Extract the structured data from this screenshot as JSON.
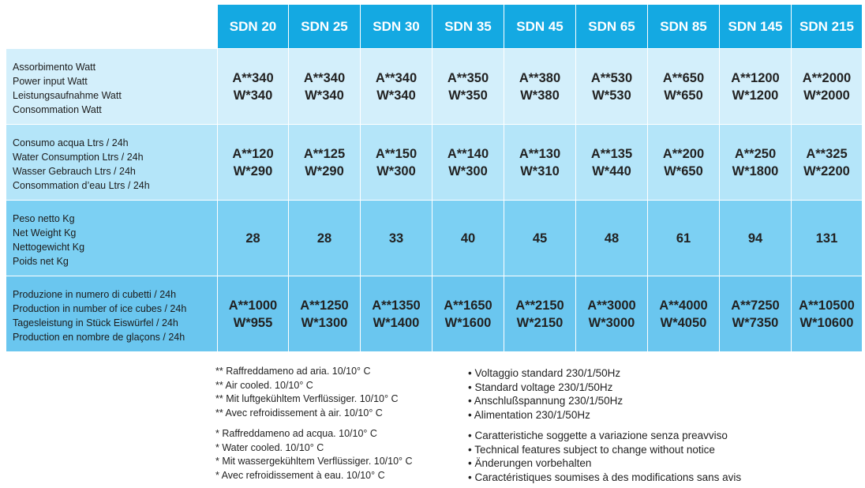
{
  "columns": [
    "SDN 20",
    "SDN 25",
    "SDN 30",
    "SDN 35",
    "SDN 45",
    "SDN 65",
    "SDN 85",
    "SDN 145",
    "SDN 215"
  ],
  "rows": [
    {
      "labels": [
        "Assorbimento Watt",
        "Power input Watt",
        "Leistungsaufnahme Watt",
        "Consommation Watt"
      ],
      "values": [
        [
          "A**340",
          "W*340"
        ],
        [
          "A**340",
          "W*340"
        ],
        [
          "A**340",
          "W*340"
        ],
        [
          "A**350",
          "W*350"
        ],
        [
          "A**380",
          "W*380"
        ],
        [
          "A**530",
          "W*530"
        ],
        [
          "A**650",
          "W*650"
        ],
        [
          "A**1200",
          "W*1200"
        ],
        [
          "A**2000",
          "W*2000"
        ]
      ]
    },
    {
      "labels": [
        "Consumo acqua Ltrs / 24h",
        "Water Consumption Ltrs / 24h",
        "Wasser Gebrauch Ltrs / 24h",
        "Consommation d’eau Ltrs / 24h"
      ],
      "values": [
        [
          "A**120",
          "W*290"
        ],
        [
          "A**125",
          "W*290"
        ],
        [
          "A**150",
          "W*300"
        ],
        [
          "A**140",
          "W*300"
        ],
        [
          "A**130",
          "W*310"
        ],
        [
          "A**135",
          "W*440"
        ],
        [
          "A**200",
          "W*650"
        ],
        [
          "A**250",
          "W*1800"
        ],
        [
          "A**325",
          "W*2200"
        ]
      ]
    },
    {
      "labels": [
        "Peso netto Kg",
        "Net Weight Kg",
        "Nettogewicht Kg",
        "Poids net Kg"
      ],
      "values": [
        [
          "28"
        ],
        [
          "28"
        ],
        [
          "33"
        ],
        [
          "40"
        ],
        [
          "45"
        ],
        [
          "48"
        ],
        [
          "61"
        ],
        [
          "94"
        ],
        [
          "131"
        ]
      ]
    },
    {
      "labels": [
        "Produzione in numero di cubetti / 24h",
        "Production in number of ice cubes / 24h",
        "Tagesleistung in Stück Eiswürfel / 24h",
        "Production en nombre de glaçons / 24h"
      ],
      "values": [
        [
          "A**1000",
          "W*955"
        ],
        [
          "A**1250",
          "W*1300"
        ],
        [
          "A**1350",
          "W*1400"
        ],
        [
          "A**1650",
          "W*1600"
        ],
        [
          "A**2150",
          "W*2150"
        ],
        [
          "A**3000",
          "W*3000"
        ],
        [
          "A**4000",
          "W*4050"
        ],
        [
          "A**7250",
          "W*7350"
        ],
        [
          "A**10500",
          "W*10600"
        ]
      ]
    }
  ],
  "notes_left": [
    [
      "** Raffreddameno ad aria. 10/10° C",
      "** Air cooled. 10/10° C",
      "** Mit luftgekühltem Verflüssiger. 10/10° C",
      "** Avec refroidissement à air. 10/10° C"
    ],
    [
      "* Raffreddameno ad acqua. 10/10° C",
      "* Water cooled. 10/10° C",
      "* Mit wassergekühltem Verflüssiger. 10/10° C",
      "* Avec refroidissement à eau. 10/10° C"
    ]
  ],
  "notes_right": [
    [
      "• Voltaggio standard 230/1/50Hz",
      "• Standard voltage 230/1/50Hz",
      "• Anschlußspannung 230/1/50Hz",
      "• Alimentation 230/1/50Hz"
    ],
    [
      "• Caratteristiche soggette a variazione senza preavviso",
      "• Technical features subject to change without notice",
      "• Änderungen vorbehalten",
      "• Caractéristiques soumises à des modifications sans avis"
    ]
  ]
}
